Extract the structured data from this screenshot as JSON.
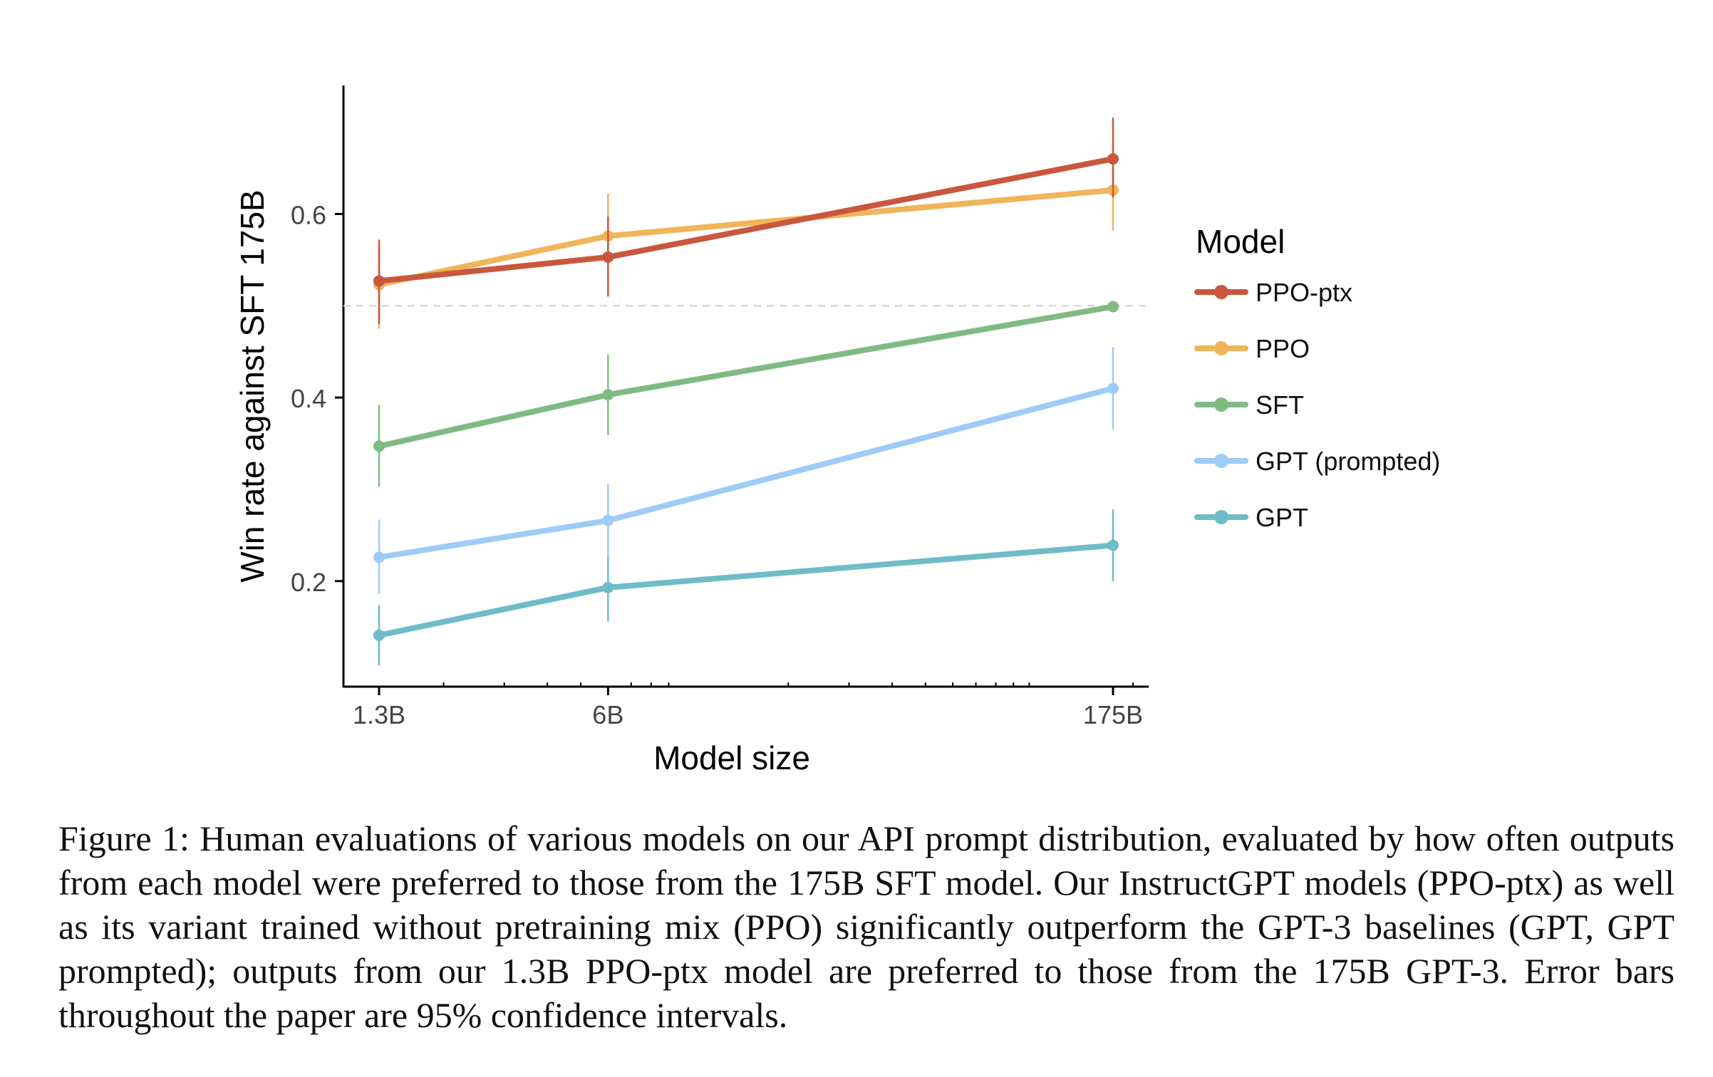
{
  "chart_data": {
    "type": "line",
    "xlabel": "Model size",
    "ylabel": "Win rate against SFT 175B",
    "x_scale": "log",
    "x_ticks": [
      "1.3B",
      "6B",
      "175B"
    ],
    "x_tick_values": [
      1.3,
      6,
      175
    ],
    "y_ticks": [
      "0.2",
      "0.4",
      "0.6"
    ],
    "y_tick_values": [
      0.2,
      0.4,
      0.6
    ],
    "ylim": [
      0.085,
      0.74
    ],
    "reference_line": 0.5,
    "legend_title": "Model",
    "legend_position": "right",
    "x": [
      1.3,
      6,
      175
    ],
    "series": [
      {
        "name": "PPO-ptx",
        "color": "#c9573e",
        "values": [
          0.527,
          0.553,
          0.66
        ],
        "lower": [
          0.48,
          0.51,
          0.618
        ],
        "upper": [
          0.572,
          0.597,
          0.705
        ]
      },
      {
        "name": "PPO",
        "color": "#f0b45a",
        "values": [
          0.523,
          0.576,
          0.626
        ],
        "lower": [
          0.475,
          0.531,
          0.582
        ],
        "upper": [
          0.566,
          0.622,
          0.672
        ]
      },
      {
        "name": "SFT",
        "color": "#80ba83",
        "values": [
          0.347,
          0.403,
          0.499
        ],
        "lower": [
          0.303,
          0.359,
          0.499
        ],
        "upper": [
          0.392,
          0.447,
          0.499
        ]
      },
      {
        "name": "GPT (prompted)",
        "color": "#9fcbf7",
        "values": [
          0.226,
          0.266,
          0.41
        ],
        "lower": [
          0.186,
          0.226,
          0.365
        ],
        "upper": [
          0.267,
          0.306,
          0.455
        ]
      },
      {
        "name": "GPT",
        "color": "#6ebcc8",
        "values": [
          0.141,
          0.193,
          0.239
        ],
        "lower": [
          0.108,
          0.156,
          0.2
        ],
        "upper": [
          0.174,
          0.23,
          0.278
        ]
      }
    ]
  },
  "caption": "Figure 1: Human evaluations of various models on our API prompt distribution, evaluated by how often outputs from each model were preferred to those from the 175B SFT model. Our InstructGPT models (PPO-ptx) as well as its variant trained without pretraining mix (PPO) significantly outperform the GPT-3 baselines (GPT, GPT prompted); outputs from our 1.3B PPO-ptx model are preferred to those from the 175B GPT-3. Error bars throughout the paper are 95% confidence intervals."
}
